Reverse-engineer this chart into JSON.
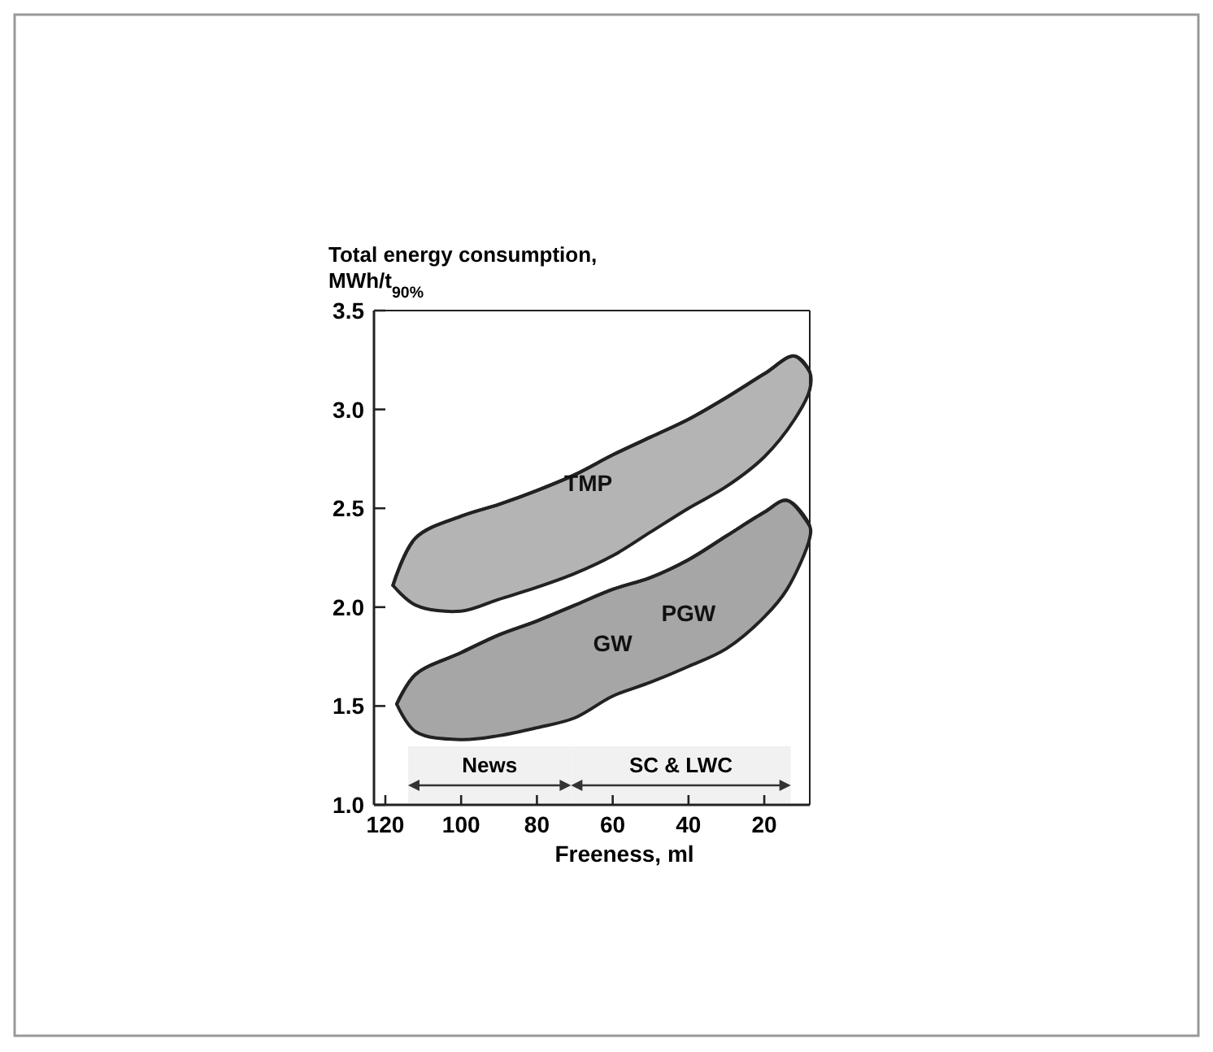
{
  "chart_data": {
    "type": "line",
    "xlabel": "Freeness, ml",
    "ylabel": "Total energy consumption, MWh/t$_{90%}$",
    "xlim": [
      123,
      8
    ],
    "xticks": [
      120,
      100,
      80,
      60,
      40,
      20
    ],
    "ylim": [
      1.0,
      3.5
    ],
    "yticks": [
      {
        "value": 1,
        "label": "1.0"
      },
      1.5,
      {
        "value": 2,
        "label": "2.0"
      },
      2.5,
      {
        "value": 3,
        "label": "3.0"
      },
      3.5
    ],
    "series": [
      {
        "name": "TMP",
        "color": "#222222",
        "x": [
          118,
          112,
          100,
          90,
          80,
          70,
          60,
          50,
          40,
          30,
          20,
          12,
          8
        ],
        "values": [
          2.11,
          2.35,
          2.46,
          2.52,
          2.59,
          2.67,
          2.77,
          2.86,
          2.95,
          3.06,
          3.18,
          3.27,
          3.19
        ],
        "upper": [
          2.11,
          2.35,
          2.46,
          2.52,
          2.59,
          2.67,
          2.77,
          2.86,
          2.95,
          3.06,
          3.18,
          3.27,
          3.19
        ],
        "lower": [
          2.11,
          2.01,
          1.98,
          2.04,
          2.1,
          2.17,
          2.26,
          2.38,
          2.5,
          2.61,
          2.76,
          2.95,
          3.1
        ]
      },
      {
        "color": "#222222",
        "x": [
          117,
          112,
          100,
          90,
          80,
          70,
          60,
          50,
          40,
          30,
          20,
          14,
          8
        ],
        "values": [
          1.51,
          1.66,
          1.77,
          1.86,
          1.93,
          2.01,
          2.09,
          2.15,
          2.24,
          2.36,
          2.48,
          2.54,
          2.41
        ],
        "upper": [
          1.51,
          1.66,
          1.77,
          1.86,
          1.93,
          2.01,
          2.09,
          2.15,
          2.24,
          2.36,
          2.48,
          2.54,
          2.41
        ],
        "lower": [
          1.51,
          1.37,
          1.33,
          1.35,
          1.39,
          1.44,
          1.55,
          1.62,
          1.7,
          1.79,
          1.95,
          2.09,
          2.35
        ]
      }
    ],
    "annotations": [
      "PGW",
      "GW"
    ],
    "bands": [
      {
        "axis": "x",
        "from": 114,
        "to": 71,
        "label": "News"
      },
      {
        "axis": "x",
        "from": 71,
        "to": 13,
        "label": "SC & LWC"
      }
    ]
  }
}
